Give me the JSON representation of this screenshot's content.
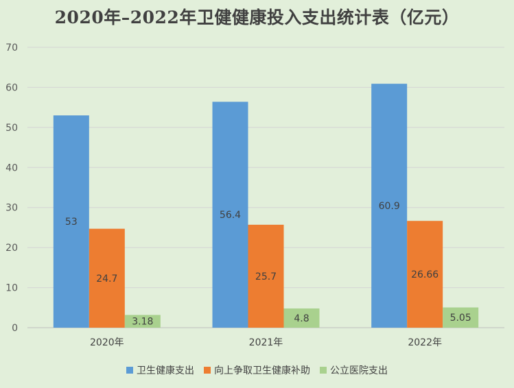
{
  "chart_data": {
    "type": "bar",
    "title": "2020年–2022年卫健健康投入支出统计表（亿元）",
    "categories": [
      "2020年",
      "2021年",
      "2022年"
    ],
    "series": [
      {
        "name": "卫生健康支出",
        "values": [
          53,
          56.4,
          60.9
        ],
        "labels": [
          "53",
          "56.4",
          "60.9"
        ],
        "color": "#5b9bd5"
      },
      {
        "name": "向上争取卫生健康补助",
        "values": [
          24.7,
          25.7,
          26.66
        ],
        "labels": [
          "24.7",
          "25.7",
          "26.66"
        ],
        "color": "#ed7d31"
      },
      {
        "name": "公立医院支出",
        "values": [
          3.18,
          4.8,
          5.05
        ],
        "labels": [
          "3.18",
          "4.8",
          "5.05"
        ],
        "color": "#a9d18e"
      }
    ],
    "ylim": [
      0,
      70
    ],
    "yticks": [
      "0",
      "10",
      "20",
      "30",
      "40",
      "50",
      "60",
      "70"
    ],
    "grid": true,
    "legend_position": "bottom"
  }
}
